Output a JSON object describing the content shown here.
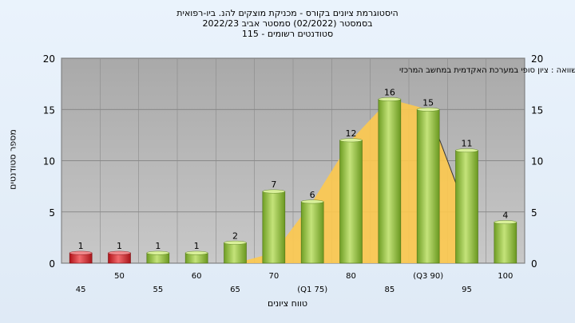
{
  "titles": {
    "line1": "היסטוגרמת ציונים בקורס - מכניקת מוצקים להנ. ביו-רפואית",
    "line2": "בסמסטר  (02/2022)  סמסטר אביב 2022/23",
    "line3": "סטודנטים רשומים - 115"
  },
  "colors": {
    "background": "#e3edf8",
    "plot_bg": "#b7b7b7",
    "bar_fail": "#d9262b",
    "bar_pass": "#93c33c",
    "area": "#fdc94e"
  },
  "chart_data": {
    "type": "bar",
    "annotation": "בהשוואה : ציון סופי במערכת האקדמית במחשב המרכזי",
    "xlabel": "טווח ציונים",
    "ylabel": "מספר סטודנטים",
    "ylim": [
      0,
      20
    ],
    "yticks": [
      0,
      5,
      10,
      15,
      20
    ],
    "categories": [
      "45",
      "50",
      "55",
      "60",
      "65",
      "70",
      "(Q1 75)",
      "80",
      "85",
      "(Q3 90)",
      "95",
      "100"
    ],
    "values": [
      1,
      1,
      1,
      1,
      2,
      7,
      6,
      12,
      16,
      15,
      11,
      4
    ],
    "bar_types": [
      "fail",
      "fail",
      "pass",
      "pass",
      "pass",
      "pass",
      "pass",
      "pass",
      "pass",
      "pass",
      "pass",
      "pass"
    ],
    "grid": true
  }
}
